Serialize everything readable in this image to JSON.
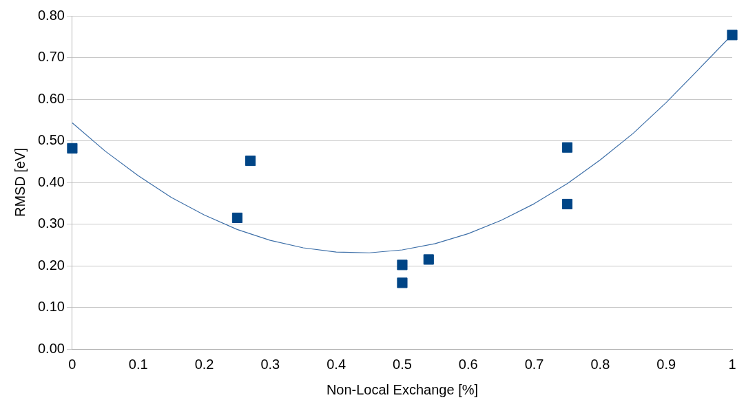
{
  "chart_data": {
    "type": "scatter",
    "xlabel": "Non-Local Exchange [%]",
    "ylabel": "RMSD [eV]",
    "xlim": [
      0,
      1
    ],
    "xticks": [
      0,
      0.1,
      0.2,
      0.3,
      0.4,
      0.5,
      0.6,
      0.7,
      0.8,
      0.9,
      1
    ],
    "ylim": [
      0,
      0.8
    ],
    "yticks": [
      {
        "value": 0,
        "label": "0.00"
      },
      {
        "value": 0.1,
        "label": "0.10"
      },
      {
        "value": 0.2,
        "label": "0.20"
      },
      {
        "value": 0.3,
        "label": "0.30"
      },
      {
        "value": 0.4,
        "label": "0.40"
      },
      {
        "value": 0.5,
        "label": "0.50"
      },
      {
        "value": 0.6,
        "label": "0.60"
      },
      {
        "value": 0.7,
        "label": "0.70"
      },
      {
        "value": 0.8,
        "label": "0.80"
      }
    ],
    "grid": "y",
    "legend": false,
    "series": [
      {
        "type": "scatter",
        "marker": "square",
        "color": "#004586",
        "x": [
          0,
          0.25,
          0.27,
          0.5,
          0.5,
          0.54,
          0.75,
          0.75,
          1
        ],
        "values": [
          0.482,
          0.315,
          0.452,
          0.202,
          0.159,
          0.215,
          0.484,
          0.348,
          0.754
        ]
      },
      {
        "type": "line",
        "marker": "none",
        "line_style": "solid",
        "color": "#3d6fa8",
        "x": [
          0,
          0.05,
          0.1,
          0.15,
          0.2,
          0.25,
          0.3,
          0.35,
          0.4,
          0.45,
          0.5,
          0.55,
          0.6,
          0.65,
          0.7,
          0.75,
          0.8,
          0.85,
          0.9,
          0.95,
          1
        ],
        "values": [
          0.543,
          0.475,
          0.416,
          0.364,
          0.322,
          0.287,
          0.261,
          0.243,
          0.233,
          0.231,
          0.238,
          0.253,
          0.277,
          0.309,
          0.349,
          0.397,
          0.454,
          0.518,
          0.592,
          0.673,
          0.755
        ]
      }
    ]
  }
}
